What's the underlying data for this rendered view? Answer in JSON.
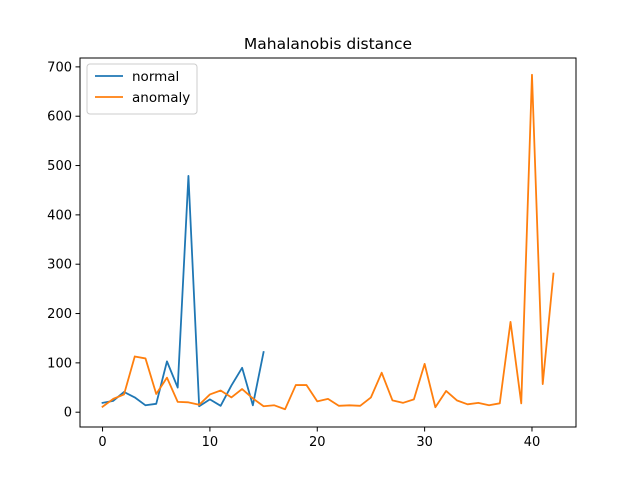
{
  "chart_data": {
    "type": "line",
    "title": "Mahalanobis distance",
    "xlabel": "",
    "ylabel": "",
    "xlim": [
      -2.1,
      44.1
    ],
    "ylim": [
      -30,
      718
    ],
    "xticks": [
      0,
      10,
      20,
      30,
      40
    ],
    "yticks": [
      0,
      100,
      200,
      300,
      400,
      500,
      600,
      700
    ],
    "grid": false,
    "legend_position": "top-left",
    "series": [
      {
        "name": "normal",
        "color": "#1f77b4",
        "x": [
          0,
          1,
          2,
          3,
          4,
          5,
          6,
          7,
          8,
          9,
          10,
          11,
          12,
          13,
          14,
          15
        ],
        "values": [
          19,
          23,
          41,
          30,
          14,
          17,
          103,
          50,
          479,
          12,
          26,
          13,
          54,
          90,
          14,
          122
        ]
      },
      {
        "name": "anomaly",
        "color": "#ff7f0e",
        "x": [
          0,
          1,
          2,
          3,
          4,
          5,
          6,
          7,
          8,
          9,
          10,
          11,
          12,
          13,
          14,
          15,
          16,
          17,
          18,
          19,
          20,
          21,
          22,
          23,
          24,
          25,
          26,
          27,
          28,
          29,
          30,
          31,
          32,
          33,
          34,
          35,
          36,
          37,
          38,
          39,
          40,
          41,
          42
        ],
        "values": [
          11,
          27,
          36,
          113,
          109,
          37,
          70,
          21,
          20,
          15,
          36,
          44,
          30,
          47,
          28,
          12,
          14,
          6,
          55,
          55,
          22,
          27,
          13,
          14,
          13,
          30,
          80,
          24,
          19,
          26,
          98,
          10,
          43,
          24,
          16,
          19,
          14,
          18,
          183,
          18,
          684,
          57,
          281
        ]
      }
    ]
  }
}
